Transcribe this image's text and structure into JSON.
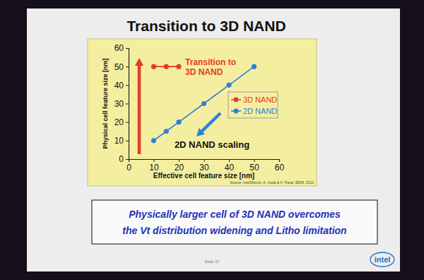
{
  "chart_data": {
    "type": "line",
    "title": "Transition to 3D NAND",
    "x_label": "Effective cell feature size [nm]",
    "y_label": "Physical cell feature size [nm]",
    "xlim": [
      0,
      60
    ],
    "ylim": [
      0,
      60
    ],
    "xticks": [
      0,
      10,
      20,
      30,
      40,
      50,
      60
    ],
    "yticks": [
      0,
      10,
      20,
      30,
      40,
      50,
      60
    ],
    "grid": false,
    "legend": "right",
    "series": [
      {
        "name": "3D NAND",
        "color": "#e5392b",
        "marker": "circle",
        "line_style": "solid",
        "x": [
          10,
          15,
          20
        ],
        "values": [
          50,
          50,
          50
        ]
      },
      {
        "name": "2D NAND",
        "color": "#2f7fd8",
        "marker": "circle",
        "line_style": "solid",
        "x": [
          10,
          15,
          20,
          30,
          40,
          50
        ],
        "values": [
          10,
          15,
          20,
          30,
          40,
          50
        ]
      }
    ],
    "annotations": [
      {
        "lines": [
          "Transition to",
          "3D NAND"
        ],
        "color": "#e5392b"
      },
      {
        "lines": [
          "2D NAND scaling"
        ],
        "color": "#111111"
      }
    ],
    "source": "Source: Intel/Micron, A. Goda & K. Parat, IEDM, 2012"
  },
  "footer": {
    "message": [
      "Physically larger cell of 3D NAND overcomes",
      "the Vt distribution widening and Litho limitation"
    ],
    "slide": "Slide 27",
    "logo": "intel"
  }
}
